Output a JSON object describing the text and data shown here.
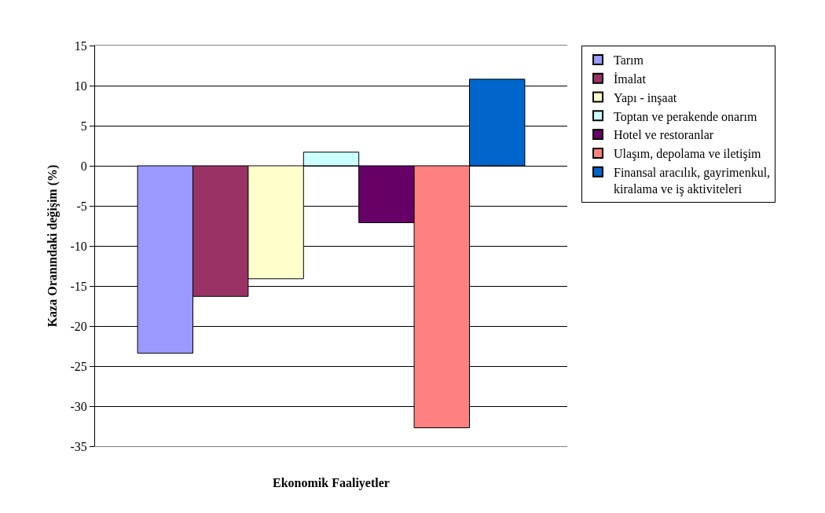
{
  "chart_data": {
    "type": "bar",
    "xlabel": "Ekonomik Faaliyetler",
    "ylabel": "Kaza Oranındaki değişim (%)",
    "categories": [
      null
    ],
    "series": [
      {
        "name": "Tarım",
        "color": "#9999ff",
        "values": [
          -23.4
        ]
      },
      {
        "name": "İmalat",
        "color": "#993366",
        "values": [
          -16.3
        ]
      },
      {
        "name": "Yapı - inşaat",
        "color": "#ffffcc",
        "values": [
          -14.1
        ]
      },
      {
        "name": "Toptan ve perakende onarım",
        "color": "#ccffff",
        "values": [
          1.7
        ]
      },
      {
        "name": "Hotel ve restoranlar",
        "color": "#660066",
        "values": [
          -7.1
        ]
      },
      {
        "name": "Ulaşım, depolama ve iletişim",
        "color": "#ff8080",
        "values": [
          -32.7
        ]
      },
      {
        "name": "Finansal aracılık, gayrimenkul, kiralama ve iş aktiviteleri",
        "color": "#0066cc",
        "values": [
          10.8
        ]
      }
    ],
    "ylim": [
      -35,
      15
    ],
    "yticks": [
      -35,
      -30,
      -25,
      -20,
      -15,
      -10,
      -5,
      0,
      5,
      10,
      15
    ],
    "grid": "y",
    "legend": "right",
    "tick_labels": "y"
  }
}
